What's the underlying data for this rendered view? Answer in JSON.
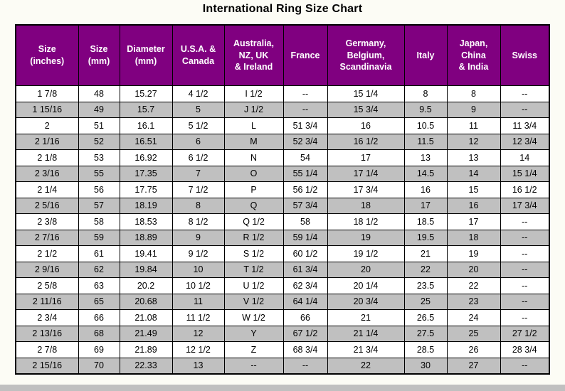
{
  "title": "International Ring Size Chart",
  "colors": {
    "header_bg": "#800080",
    "header_text": "#FFFFFF",
    "row_alt_bg": "#C0C0C0",
    "row_bg": "#FFFFFF",
    "border": "#000000",
    "page_bg": "#FCFCF5"
  },
  "chart_data": {
    "type": "table",
    "title": "International Ring Size Chart",
    "columns": [
      "Size (inches)",
      "Size (mm)",
      "Diameter (mm)",
      "U.S.A. & Canada",
      "Australia, NZ, UK & Ireland",
      "France",
      "Germany, Belgium, Scandinavia",
      "Italy",
      "Japan, China & India",
      "Swiss"
    ],
    "header_display": [
      "Size\n(inches)",
      "Size\n(mm)",
      "Diameter\n(mm)",
      "U.S.A. &\nCanada",
      "Australia,\nNZ, UK\n& Ireland",
      "France",
      "Germany,\nBelgium,\nScandinavia",
      "Italy",
      "Japan,\nChina\n& India",
      "Swiss"
    ],
    "rows": [
      [
        "1 7/8",
        "48",
        "15.27",
        "4 1/2",
        "I 1/2",
        "--",
        "15 1/4",
        "8",
        "8",
        "--"
      ],
      [
        "1 15/16",
        "49",
        "15.7",
        "5",
        "J 1/2",
        "--",
        "15 3/4",
        "9.5",
        "9",
        "--"
      ],
      [
        "2",
        "51",
        "16.1",
        "5 1/2",
        "L",
        "51 3/4",
        "16",
        "10.5",
        "11",
        "11 3/4"
      ],
      [
        "2 1/16",
        "52",
        "16.51",
        "6",
        "M",
        "52 3/4",
        "16 1/2",
        "11.5",
        "12",
        "12 3/4"
      ],
      [
        "2 1/8",
        "53",
        "16.92",
        "6 1/2",
        "N",
        "54",
        "17",
        "13",
        "13",
        "14"
      ],
      [
        "2 3/16",
        "55",
        "17.35",
        "7",
        "O",
        "55 1/4",
        "17 1/4",
        "14.5",
        "14",
        "15 1/4"
      ],
      [
        "2 1/4",
        "56",
        "17.75",
        "7 1/2",
        "P",
        "56 1/2",
        "17 3/4",
        "16",
        "15",
        "16 1/2"
      ],
      [
        "2 5/16",
        "57",
        "18.19",
        "8",
        "Q",
        "57 3/4",
        "18",
        "17",
        "16",
        "17 3/4"
      ],
      [
        "2 3/8",
        "58",
        "18.53",
        "8 1/2",
        "Q 1/2",
        "58",
        "18 1/2",
        "18.5",
        "17",
        "--"
      ],
      [
        "2 7/16",
        "59",
        "18.89",
        "9",
        "R 1/2",
        "59 1/4",
        "19",
        "19.5",
        "18",
        "--"
      ],
      [
        "2 1/2",
        "61",
        "19.41",
        "9 1/2",
        "S 1/2",
        "60 1/2",
        "19 1/2",
        "21",
        "19",
        "--"
      ],
      [
        "2 9/16",
        "62",
        "19.84",
        "10",
        "T 1/2",
        "61 3/4",
        "20",
        "22",
        "20",
        "--"
      ],
      [
        "2 5/8",
        "63",
        "20.2",
        "10 1/2",
        "U 1/2",
        "62 3/4",
        "20 1/4",
        "23.5",
        "22",
        "--"
      ],
      [
        "2 11/16",
        "65",
        "20.68",
        "11",
        "V 1/2",
        "64 1/4",
        "20 3/4",
        "25",
        "23",
        "--"
      ],
      [
        "2 3/4",
        "66",
        "21.08",
        "11 1/2",
        "W 1/2",
        "66",
        "21",
        "26.5",
        "24",
        "--"
      ],
      [
        "2 13/16",
        "68",
        "21.49",
        "12",
        "Y",
        "67 1/2",
        "21 1/4",
        "27.5",
        "25",
        "27 1/2"
      ],
      [
        "2 7/8",
        "69",
        "21.89",
        "12 1/2",
        "Z",
        "68 3/4",
        "21 3/4",
        "28.5",
        "26",
        "28 3/4"
      ],
      [
        "2 15/16",
        "70",
        "22.33",
        "13",
        "--",
        "--",
        "22",
        "30",
        "27",
        "--"
      ]
    ]
  }
}
